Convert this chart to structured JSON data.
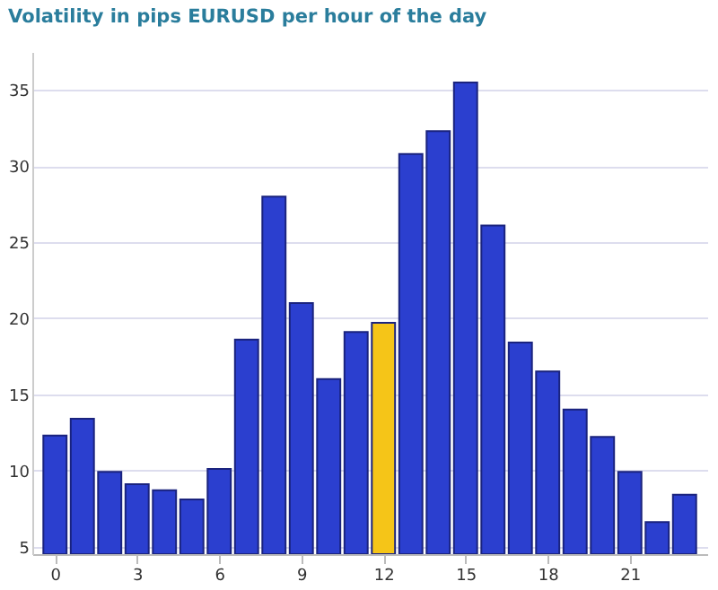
{
  "chart_data": {
    "type": "bar",
    "title": "Volatility in pips EURUSD per hour of the day",
    "x": [
      0,
      1,
      2,
      3,
      4,
      5,
      6,
      7,
      8,
      9,
      10,
      11,
      12,
      13,
      14,
      15,
      16,
      17,
      18,
      19,
      20,
      21,
      22,
      23
    ],
    "values": [
      12.3,
      13.4,
      9.9,
      9.1,
      8.7,
      8.1,
      10.1,
      18.6,
      28.0,
      21.0,
      16.0,
      19.1,
      19.7,
      30.8,
      32.3,
      35.5,
      26.1,
      18.4,
      16.5,
      14.0,
      12.2,
      9.9,
      6.6,
      8.4
    ],
    "colors": [
      "#2b3fcf",
      "#2b3fcf",
      "#2b3fcf",
      "#2b3fcf",
      "#2b3fcf",
      "#2b3fcf",
      "#2b3fcf",
      "#2b3fcf",
      "#2b3fcf",
      "#2b3fcf",
      "#2b3fcf",
      "#2b3fcf",
      "#f5c518",
      "#2b3fcf",
      "#2b3fcf",
      "#2b3fcf",
      "#2b3fcf",
      "#2b3fcf",
      "#2b3fcf",
      "#2b3fcf",
      "#2b3fcf",
      "#2b3fcf",
      "#2b3fcf",
      "#2b3fcf"
    ],
    "xlim": [
      -0.5,
      23.5
    ],
    "xticks": [
      0,
      3,
      6,
      9,
      12,
      15,
      18,
      21
    ],
    "ylim": [
      4.5,
      37.5
    ],
    "yticks": [
      5,
      10,
      15,
      20,
      25,
      30,
      35
    ],
    "grid": "y"
  }
}
